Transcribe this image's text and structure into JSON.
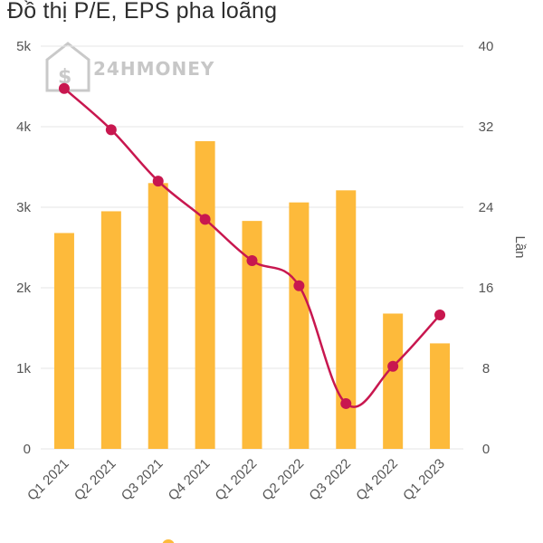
{
  "title": "Đồ thị P/E, EPS pha loãng",
  "watermark": "24HMONEY",
  "chart_data": {
    "type": "bar",
    "categories": [
      "Q1 2021",
      "Q2 2021",
      "Q3 2021",
      "Q4 2021",
      "Q1 2022",
      "Q2 2022",
      "Q3 2022",
      "Q4 2022",
      "Q1 2023"
    ],
    "left_axis": {
      "ylim": [
        0,
        5000
      ],
      "ticks": [
        0,
        1000,
        2000,
        3000,
        4000,
        5000
      ],
      "tick_labels": [
        "0",
        "1k",
        "2k",
        "3k",
        "4k",
        "5k"
      ]
    },
    "right_axis": {
      "ylim": [
        0,
        40
      ],
      "ticks": [
        0,
        8,
        16,
        24,
        32,
        40
      ],
      "tick_labels": [
        "0",
        "8",
        "16",
        "24",
        "32",
        "40"
      ],
      "label": "Lần"
    },
    "series": [
      {
        "type": "bar",
        "axis": "left",
        "color": "#FDBA3B",
        "values": [
          2680,
          2950,
          3300,
          3820,
          2830,
          3060,
          3210,
          1680,
          1310
        ]
      },
      {
        "type": "line",
        "axis": "right",
        "color": "#C8174F",
        "values": [
          35.8,
          31.7,
          26.6,
          22.8,
          18.7,
          16.2,
          4.5,
          8.2,
          13.3
        ]
      }
    ],
    "grid": true,
    "xlabel_rotation": -45
  }
}
